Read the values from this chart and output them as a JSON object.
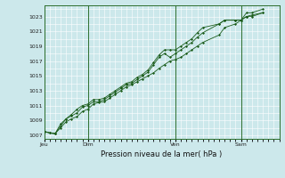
{
  "title": "",
  "xlabel": "Pression niveau de la mer( hPa )",
  "ylabel": "",
  "bg_color": "#cce8eb",
  "grid_color": "#ffffff",
  "line_color": "#1a5c1a",
  "marker_color": "#1a5c1a",
  "ylim": [
    1006.5,
    1024.5
  ],
  "yticks": [
    1007,
    1009,
    1011,
    1013,
    1015,
    1017,
    1019,
    1021,
    1023
  ],
  "day_labels": [
    "Jeu",
    "Dim",
    "Ven",
    "Sam"
  ],
  "day_positions": [
    0,
    48,
    144,
    216
  ],
  "total_hours": 258,
  "series": [
    [
      1007.5,
      1007.3,
      1007.2,
      1008.0,
      1008.8,
      1009.2,
      1009.5,
      1010.2,
      1010.5,
      1011.2,
      1011.4,
      1011.5,
      1012.0,
      1012.5,
      1013.0,
      1013.5,
      1013.8,
      1014.2,
      1014.6,
      1015.0,
      1015.4,
      1016.0,
      1016.5,
      1017.0,
      1017.2,
      1017.5,
      1018.0,
      1018.5,
      1019.0,
      1019.5,
      1020.5,
      1021.5,
      1022.0,
      1022.5,
      1023.0,
      1023.2,
      1023.5
    ],
    [
      1007.5,
      1007.3,
      1007.2,
      1008.2,
      1009.2,
      1009.6,
      1010.0,
      1010.8,
      1011.0,
      1011.5,
      1011.5,
      1011.8,
      1012.3,
      1012.8,
      1013.3,
      1013.8,
      1014.0,
      1014.5,
      1015.0,
      1015.5,
      1016.5,
      1017.5,
      1018.0,
      1017.5,
      1018.0,
      1018.5,
      1019.0,
      1019.5,
      1020.2,
      1020.8,
      1022.0,
      1022.5,
      1022.5,
      1022.5,
      1023.0,
      1023.0,
      1023.5
    ],
    [
      1007.5,
      1007.3,
      1007.2,
      1008.5,
      1009.2,
      1009.8,
      1010.5,
      1011.0,
      1011.2,
      1011.8,
      1011.8,
      1012.0,
      1012.5,
      1013.0,
      1013.5,
      1014.0,
      1014.2,
      1014.8,
      1015.2,
      1015.8,
      1016.8,
      1017.8,
      1018.5,
      1018.5,
      1018.5,
      1019.0,
      1019.5,
      1020.0,
      1020.8,
      1021.5,
      1022.0,
      1022.5,
      1022.5,
      1022.5,
      1023.5,
      1023.5,
      1024.0
    ]
  ],
  "x_hours": [
    0,
    6,
    12,
    18,
    24,
    30,
    36,
    42,
    48,
    54,
    60,
    66,
    72,
    78,
    84,
    90,
    96,
    102,
    108,
    114,
    120,
    126,
    132,
    138,
    144,
    150,
    156,
    162,
    168,
    174,
    192,
    198,
    210,
    216,
    222,
    228,
    240
  ]
}
